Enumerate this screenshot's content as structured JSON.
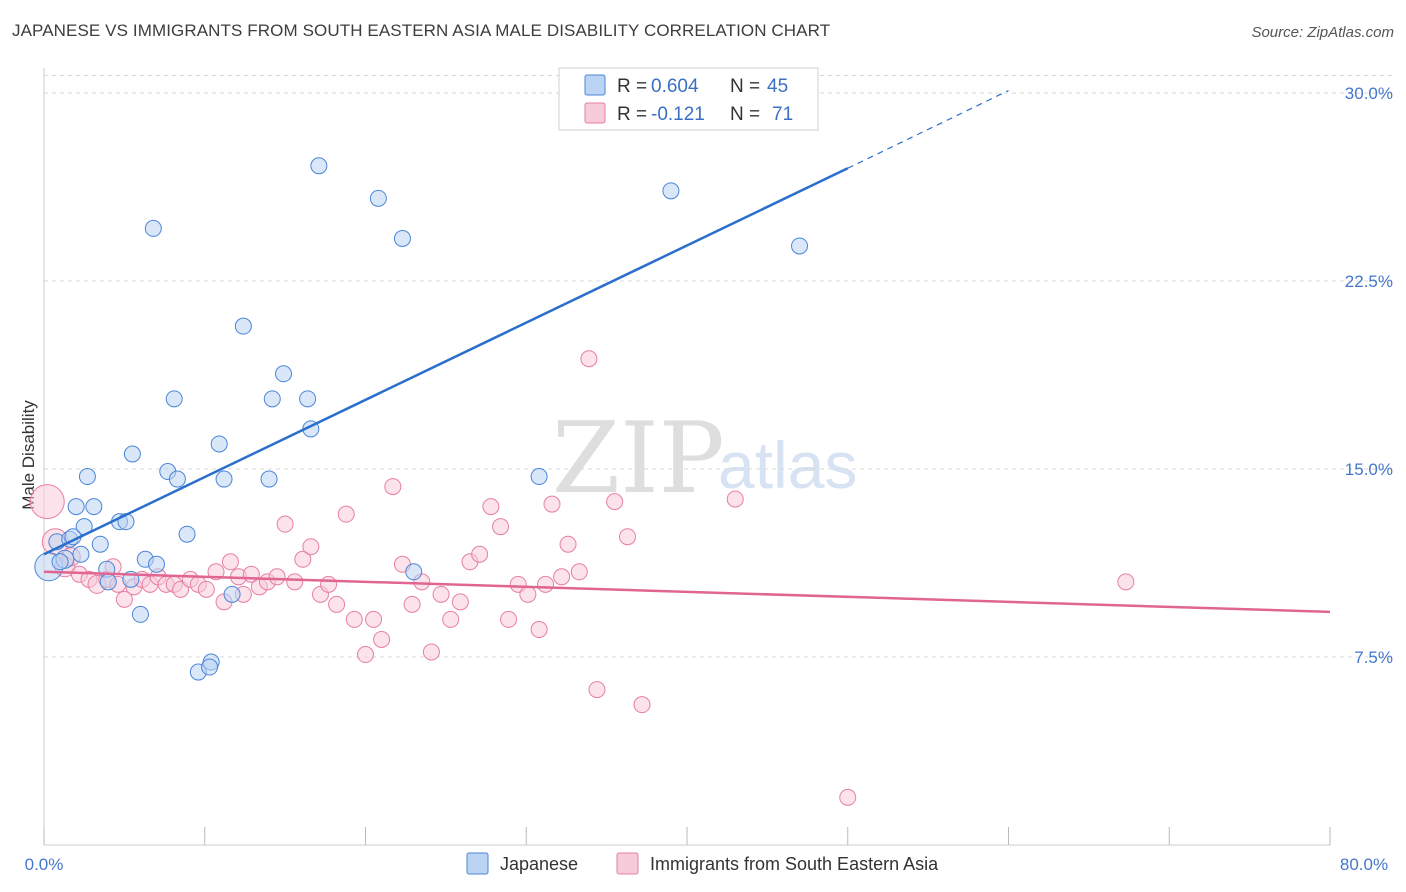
{
  "title": "JAPANESE VS IMMIGRANTS FROM SOUTH EASTERN ASIA MALE DISABILITY CORRELATION CHART",
  "source": "Source: ZipAtlas.com",
  "watermark": {
    "zip": "ZIP",
    "atlas": "atlas"
  },
  "colors": {
    "blue": "#4a86d8",
    "blue_fill": "#bcd4f3",
    "blue_line": "#2a6fcc",
    "pink": "#e77fa3",
    "pink_fill": "#f8cbdb",
    "pink_line": "#e06592",
    "grid": "#d8d8d8",
    "tick_text": "#4477cc"
  },
  "legend": {
    "rows": [
      {
        "r_label": "R =",
        "r_value": "0.604",
        "n_label": "N =",
        "n_value": "45"
      },
      {
        "r_label": "R =",
        "r_value": "-0.121",
        "n_label": "N =",
        "n_value": "71"
      }
    ]
  },
  "bottom_legend": [
    "Japanese",
    "Immigrants from South Eastern Asia"
  ],
  "chart_data": {
    "type": "scatter",
    "xlabel": "",
    "ylabel": "Male Disability",
    "xlim": [
      0,
      80
    ],
    "ylim": [
      0,
      31
    ],
    "x_tick_labels": [
      "0.0%",
      "80.0%"
    ],
    "y_ticks": [
      7.5,
      15.0,
      22.5,
      30.0
    ],
    "y_tick_labels": [
      "7.5%",
      "15.0%",
      "22.5%",
      "30.0%"
    ],
    "grid": true,
    "series": [
      {
        "name": "Japanese",
        "r": 0.604,
        "n": 45,
        "trend": {
          "x0": 0,
          "y0": 11.6,
          "x1": 50,
          "y1": 27.0,
          "dash_to_x": 60,
          "dash_to_y": 30.1
        },
        "points": [
          [
            0.3,
            11.1,
            14
          ],
          [
            0.8,
            12.1,
            8
          ],
          [
            1.3,
            11.4,
            9
          ],
          [
            1.6,
            12.2,
            8
          ],
          [
            2.0,
            13.5,
            8
          ],
          [
            2.5,
            12.7,
            8
          ],
          [
            2.7,
            14.7,
            8
          ],
          [
            3.1,
            13.5,
            8
          ],
          [
            3.5,
            12.0,
            8
          ],
          [
            3.9,
            11.0,
            8
          ],
          [
            4.7,
            12.9,
            8
          ],
          [
            5.1,
            12.9,
            8
          ],
          [
            5.5,
            15.6,
            8
          ],
          [
            6.0,
            9.2,
            8
          ],
          [
            5.4,
            10.6,
            8
          ],
          [
            6.3,
            11.4,
            8
          ],
          [
            7.0,
            11.2,
            8
          ],
          [
            6.8,
            24.6,
            8
          ],
          [
            7.7,
            14.9,
            8
          ],
          [
            8.1,
            17.8,
            8
          ],
          [
            8.3,
            14.6,
            8
          ],
          [
            8.9,
            12.4,
            8
          ],
          [
            9.6,
            6.9,
            8
          ],
          [
            10.4,
            7.3,
            8
          ],
          [
            10.9,
            16.0,
            8
          ],
          [
            11.2,
            14.6,
            8
          ],
          [
            10.3,
            7.1,
            8
          ],
          [
            11.7,
            10.0,
            8
          ],
          [
            12.4,
            20.7,
            8
          ],
          [
            14.0,
            14.6,
            8
          ],
          [
            14.2,
            17.8,
            8
          ],
          [
            14.9,
            18.8,
            8
          ],
          [
            16.4,
            17.8,
            8
          ],
          [
            16.6,
            16.6,
            8
          ],
          [
            17.1,
            27.1,
            8
          ],
          [
            20.8,
            25.8,
            8
          ],
          [
            22.3,
            24.2,
            8
          ],
          [
            23.0,
            10.9,
            8
          ],
          [
            30.8,
            14.7,
            8
          ],
          [
            39.0,
            26.1,
            8
          ],
          [
            47.0,
            23.9,
            8
          ],
          [
            1.0,
            11.3,
            8
          ],
          [
            2.3,
            11.6,
            8
          ],
          [
            4.0,
            10.5,
            8
          ],
          [
            1.8,
            12.3,
            8
          ]
        ]
      },
      {
        "name": "Immigrants from South Eastern Asia",
        "r": -0.121,
        "n": 71,
        "trend": {
          "x0": 0,
          "y0": 10.9,
          "x1": 80,
          "y1": 9.3
        },
        "points": [
          [
            0.2,
            13.7,
            17
          ],
          [
            0.7,
            12.1,
            13
          ],
          [
            1.3,
            11.1,
            10
          ],
          [
            1.7,
            11.5,
            9
          ],
          [
            2.2,
            10.8,
            8
          ],
          [
            2.8,
            10.6,
            8
          ],
          [
            3.3,
            10.4,
            9
          ],
          [
            3.9,
            10.6,
            8
          ],
          [
            4.3,
            11.1,
            8
          ],
          [
            4.6,
            10.4,
            8
          ],
          [
            5.0,
            9.8,
            8
          ],
          [
            5.6,
            10.3,
            8
          ],
          [
            6.1,
            10.6,
            8
          ],
          [
            6.6,
            10.4,
            8
          ],
          [
            7.1,
            10.7,
            8
          ],
          [
            7.6,
            10.4,
            8
          ],
          [
            8.1,
            10.4,
            8
          ],
          [
            8.5,
            10.2,
            8
          ],
          [
            9.1,
            10.6,
            8
          ],
          [
            9.6,
            10.4,
            8
          ],
          [
            10.1,
            10.2,
            8
          ],
          [
            10.7,
            10.9,
            8
          ],
          [
            11.2,
            9.7,
            8
          ],
          [
            11.6,
            11.3,
            8
          ],
          [
            12.1,
            10.7,
            8
          ],
          [
            12.4,
            10.0,
            8
          ],
          [
            12.9,
            10.8,
            8
          ],
          [
            13.4,
            10.3,
            8
          ],
          [
            13.9,
            10.5,
            8
          ],
          [
            14.5,
            10.7,
            8
          ],
          [
            15.0,
            12.8,
            8
          ],
          [
            15.6,
            10.5,
            8
          ],
          [
            16.1,
            11.4,
            8
          ],
          [
            16.6,
            11.9,
            8
          ],
          [
            17.2,
            10.0,
            8
          ],
          [
            17.7,
            10.4,
            8
          ],
          [
            18.2,
            9.6,
            8
          ],
          [
            18.8,
            13.2,
            8
          ],
          [
            19.3,
            9.0,
            8
          ],
          [
            20.0,
            7.6,
            8
          ],
          [
            20.5,
            9.0,
            8
          ],
          [
            21.0,
            8.2,
            8
          ],
          [
            21.7,
            14.3,
            8
          ],
          [
            22.3,
            11.2,
            8
          ],
          [
            22.9,
            9.6,
            8
          ],
          [
            23.5,
            10.5,
            8
          ],
          [
            24.1,
            7.7,
            8
          ],
          [
            24.7,
            10.0,
            8
          ],
          [
            25.3,
            9.0,
            8
          ],
          [
            25.9,
            9.7,
            8
          ],
          [
            26.5,
            11.3,
            8
          ],
          [
            27.1,
            11.6,
            8
          ],
          [
            27.8,
            13.5,
            8
          ],
          [
            28.4,
            12.7,
            8
          ],
          [
            28.9,
            9.0,
            8
          ],
          [
            29.5,
            10.4,
            8
          ],
          [
            30.1,
            10.0,
            8
          ],
          [
            30.8,
            8.6,
            8
          ],
          [
            31.2,
            10.4,
            8
          ],
          [
            31.6,
            13.6,
            8
          ],
          [
            32.2,
            10.7,
            8
          ],
          [
            32.6,
            12.0,
            8
          ],
          [
            33.3,
            10.9,
            8
          ],
          [
            33.9,
            19.4,
            8
          ],
          [
            34.4,
            6.2,
            8
          ],
          [
            35.5,
            13.7,
            8
          ],
          [
            36.3,
            12.3,
            8
          ],
          [
            37.2,
            5.6,
            8
          ],
          [
            43.0,
            13.8,
            8
          ],
          [
            50.0,
            1.9,
            8
          ],
          [
            67.3,
            10.5,
            8
          ]
        ]
      }
    ]
  }
}
